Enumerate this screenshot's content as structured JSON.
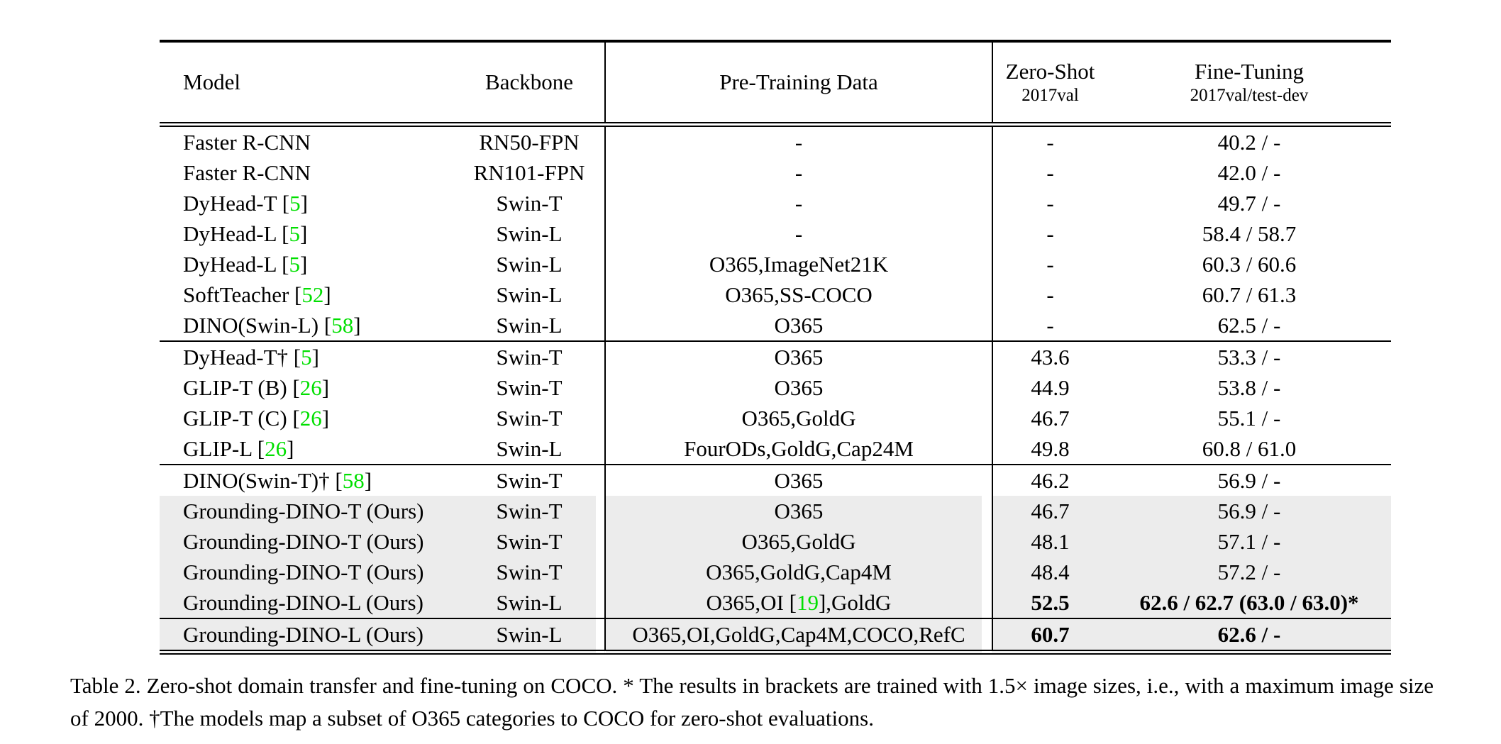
{
  "colors": {
    "citation_green": "#00df00",
    "highlight_gray": "#ececec",
    "text": "#000000",
    "background": "#ffffff"
  },
  "table": {
    "header": {
      "model": "Model",
      "backbone": "Backbone",
      "pretraining_data": "Pre-Training Data",
      "zero_shot": {
        "title": "Zero-Shot",
        "subtitle": "2017val"
      },
      "fine_tuning": {
        "title": "Fine-Tuning",
        "subtitle": "2017val/test-dev"
      }
    },
    "sections": [
      {
        "rows": [
          {
            "model": "Faster R-CNN",
            "backbone": "RN50-FPN",
            "pretrain": "-",
            "zero_shot": "-",
            "fine_tune": "40.2 / -",
            "highlight": false,
            "bold_scores": false
          },
          {
            "model": "Faster R-CNN",
            "backbone": "RN101-FPN",
            "pretrain": "-",
            "zero_shot": "-",
            "fine_tune": "42.0 / -",
            "highlight": false,
            "bold_scores": false
          },
          {
            "model": "DyHead-T [5]",
            "backbone": "Swin-T",
            "pretrain": "-",
            "zero_shot": "-",
            "fine_tune": "49.7 / -",
            "highlight": false,
            "bold_scores": false
          },
          {
            "model": "DyHead-L [5]",
            "backbone": "Swin-L",
            "pretrain": "-",
            "zero_shot": "-",
            "fine_tune": "58.4 / 58.7",
            "highlight": false,
            "bold_scores": false
          },
          {
            "model": "DyHead-L [5]",
            "backbone": "Swin-L",
            "pretrain": "O365,ImageNet21K",
            "zero_shot": "-",
            "fine_tune": "60.3 / 60.6",
            "highlight": false,
            "bold_scores": false
          },
          {
            "model": "SoftTeacher [52]",
            "backbone": "Swin-L",
            "pretrain": "O365,SS-COCO",
            "zero_shot": "-",
            "fine_tune": "60.7 / 61.3",
            "highlight": false,
            "bold_scores": false
          },
          {
            "model": "DINO(Swin-L) [58]",
            "backbone": "Swin-L",
            "pretrain": "O365",
            "zero_shot": "-",
            "fine_tune": "62.5 / -",
            "highlight": false,
            "bold_scores": false
          }
        ]
      },
      {
        "rows": [
          {
            "model": "DyHead-T† [5]",
            "backbone": "Swin-T",
            "pretrain": "O365",
            "zero_shot": "43.6",
            "fine_tune": "53.3 / -",
            "highlight": false,
            "bold_scores": false
          },
          {
            "model": "GLIP-T (B) [26]",
            "backbone": "Swin-T",
            "pretrain": "O365",
            "zero_shot": "44.9",
            "fine_tune": "53.8 / -",
            "highlight": false,
            "bold_scores": false
          },
          {
            "model": "GLIP-T (C) [26]",
            "backbone": "Swin-T",
            "pretrain": "O365,GoldG",
            "zero_shot": "46.7",
            "fine_tune": "55.1 / -",
            "highlight": false,
            "bold_scores": false
          },
          {
            "model": "GLIP-L [26]",
            "backbone": "Swin-L",
            "pretrain": "FourODs,GoldG,Cap24M",
            "zero_shot": "49.8",
            "fine_tune": "60.8 / 61.0",
            "highlight": false,
            "bold_scores": false
          }
        ]
      },
      {
        "rows": [
          {
            "model": "DINO(Swin-T)† [58]",
            "backbone": "Swin-T",
            "pretrain": "O365",
            "zero_shot": "46.2",
            "fine_tune": "56.9 / -",
            "highlight": false,
            "bold_scores": false
          },
          {
            "model": "Grounding-DINO-T (Ours)",
            "backbone": "Swin-T",
            "pretrain": "O365",
            "zero_shot": "46.7",
            "fine_tune": "56.9 / -",
            "highlight": true,
            "bold_scores": false
          },
          {
            "model": "Grounding-DINO-T (Ours)",
            "backbone": "Swin-T",
            "pretrain": "O365,GoldG",
            "zero_shot": "48.1",
            "fine_tune": "57.1 / -",
            "highlight": true,
            "bold_scores": false
          },
          {
            "model": "Grounding-DINO-T (Ours)",
            "backbone": "Swin-T",
            "pretrain": "O365,GoldG,Cap4M",
            "zero_shot": "48.4",
            "fine_tune": "57.2 / -",
            "highlight": true,
            "bold_scores": false
          },
          {
            "model": "Grounding-DINO-L (Ours)",
            "backbone": "Swin-L",
            "pretrain": "O365,OI [19],GoldG",
            "zero_shot": "52.5",
            "fine_tune": "62.6 / 62.7 (63.0 / 63.0)*",
            "highlight": true,
            "bold_scores": true
          }
        ]
      },
      {
        "rows": [
          {
            "model": "Grounding-DINO-L (Ours)",
            "backbone": "Swin-L",
            "pretrain": "O365,OI,GoldG,Cap4M,COCO,RefC",
            "zero_shot": "60.7",
            "fine_tune": "62.6 / -",
            "highlight": true,
            "bold_scores": true
          }
        ]
      }
    ]
  },
  "caption": {
    "text": "Table 2.  Zero-shot domain transfer and fine-tuning on COCO. * The results in brackets are trained with 1.5× image sizes, i.e., with a maximum image size of 2000. †The models map a subset of O365 categories to COCO for zero-shot evaluations."
  }
}
